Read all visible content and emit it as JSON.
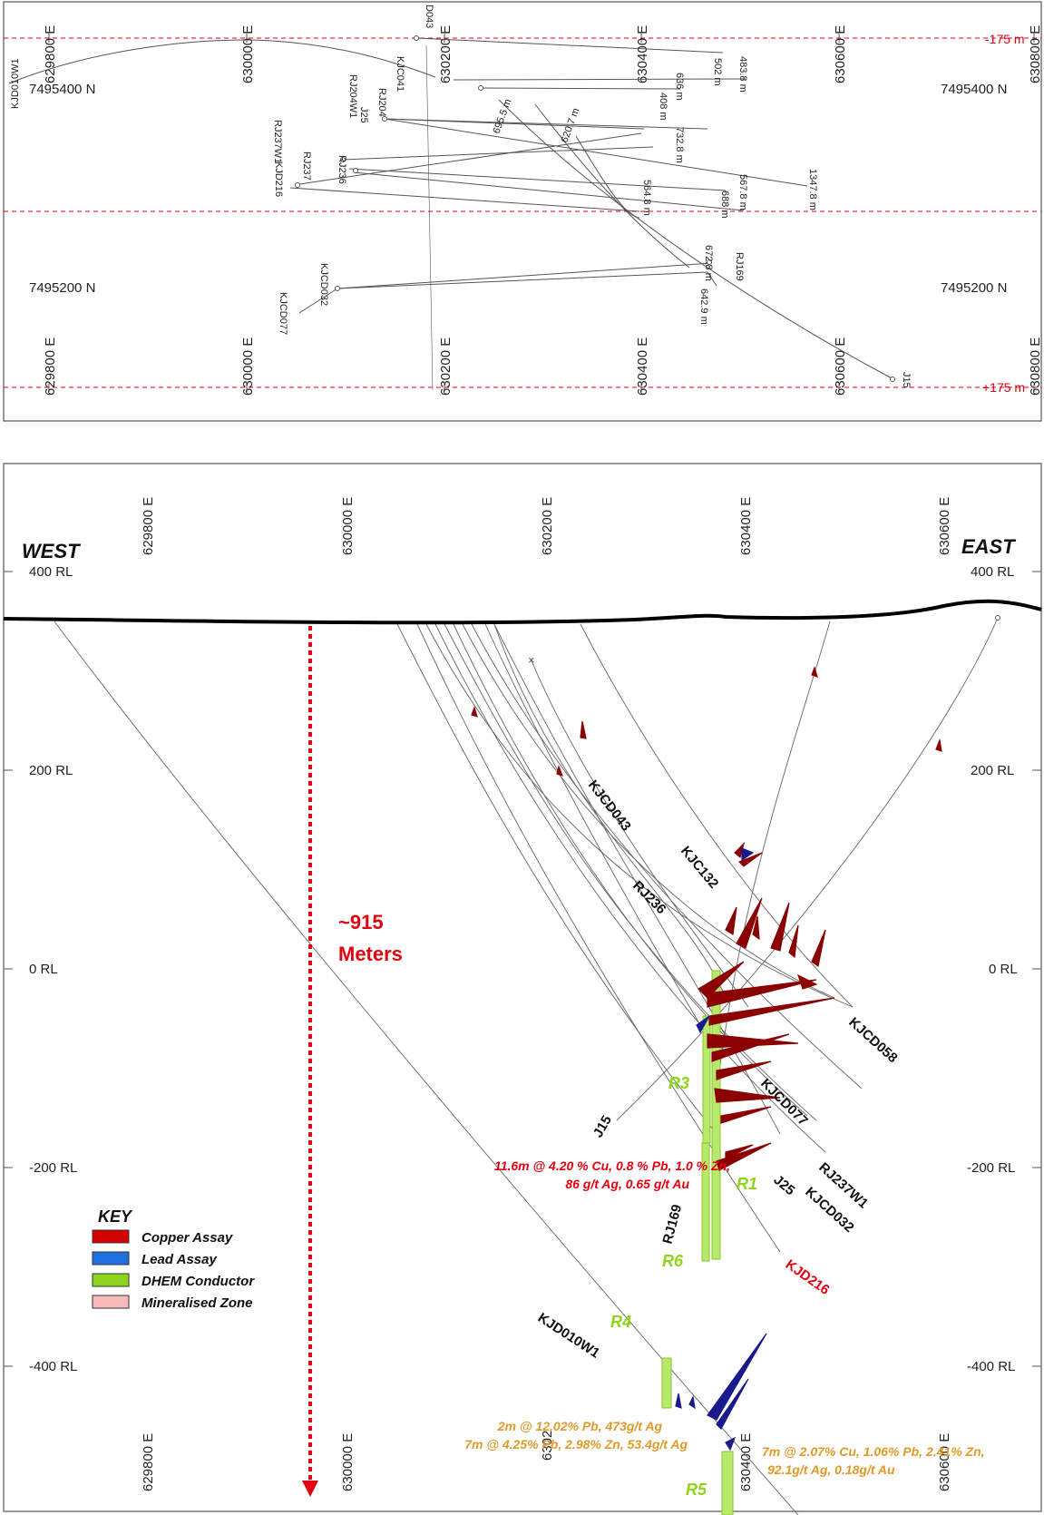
{
  "plan": {
    "easting_labels_top": [
      "629800 E",
      "630000 E",
      "630200 E",
      "630400 E",
      "630600 E",
      "630800 E"
    ],
    "easting_labels_bottom": [
      "629800 E",
      "630000 E",
      "630200 E",
      "630400 E",
      "630600 E",
      "630800 E"
    ],
    "northing_labels": [
      "7495400 N",
      "7495400 N",
      "7495200 N",
      "7495200 N"
    ],
    "limit_labels": [
      "-175 m",
      "+175 m"
    ],
    "hole_labels": [
      "KJD010W1",
      "KJC041",
      "D043",
      "RJ204W1",
      "RJ204",
      "J25",
      "RJ237W1",
      "RJ237",
      "RJ236",
      "KJD216",
      "KJCD032",
      "KJCD077",
      "J15",
      "RJ169"
    ],
    "depth_labels": [
      "502 m",
      "483.8 m",
      "636 m",
      "408 m",
      "695.5 m",
      "620.7 m",
      "732.8 m",
      "1347.8 m",
      "567.8 m",
      "688 m",
      "564.8 m",
      "672.8 m",
      "642.9 m"
    ]
  },
  "section": {
    "easting_labels_top": [
      "629800 E",
      "630000 E",
      "630200 E",
      "630400 E",
      "630600 E"
    ],
    "easting_labels_bottom": [
      "629800 E",
      "630000 E",
      "6302",
      "630400 E",
      "630600 E"
    ],
    "rl_left": [
      "400 RL",
      "200 RL",
      "0 RL",
      "-200 RL",
      "-400 RL"
    ],
    "rl_right": [
      "400 RL",
      "200 RL",
      "0 RL",
      "-200 RL",
      "-400 RL"
    ],
    "west": "WEST",
    "east": "EAST",
    "depth_value": "~915",
    "depth_unit": "Meters",
    "holes": [
      "KJCD043",
      "KJC132",
      "RJ236",
      "KJCD058",
      "KJCD077",
      "J15",
      "RJ237W1",
      "KJCD032",
      "J25",
      "RJ169",
      "KJD010W1"
    ],
    "hole_red": "KJD216",
    "conductors": [
      "R1",
      "R3",
      "R4",
      "R5",
      "R6"
    ],
    "intercept_red": [
      "11.6m @ 4.20 % Cu, 0.8 % Pb, 1.0 % Zn,",
      "86 g/t Ag, 0.65 g/t Au"
    ],
    "intercept_orange_left": [
      "2m @ 12.02% Pb, 473g/t Ag",
      "7m @ 4.25% Pb, 2.98% Zn, 53.4g/t Ag"
    ],
    "intercept_orange_right": [
      "7m @ 2.07% Cu, 1.06% Pb, 2.41% Zn,",
      "92.1g/t Ag, 0.18g/t Au"
    ]
  },
  "key": {
    "title": "KEY",
    "items": [
      {
        "label": "Copper Assay",
        "color": "#d40000"
      },
      {
        "label": "Lead Assay",
        "color": "#1f6fe0"
      },
      {
        "label": "DHEM Conductor",
        "color": "#8fd41c"
      },
      {
        "label": "Mineralised Zone",
        "color": "#f7b9b9"
      }
    ]
  },
  "colors": {
    "grid_red": "#e3000f",
    "copper": "#8b0000",
    "lead": "#1a1a8c",
    "conductor": "#b6ea6a"
  }
}
